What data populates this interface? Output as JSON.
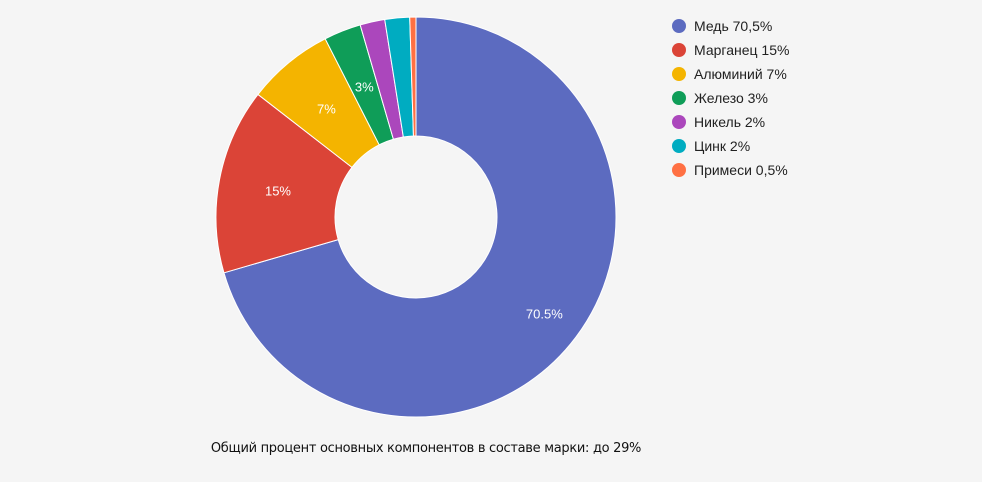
{
  "chart_data": {
    "type": "pie",
    "donut": true,
    "start": "top",
    "direction": "clockwise",
    "slices": [
      {
        "name": "Медь",
        "value": 70.5,
        "legend": "Медь 70,5%",
        "label": "70.5%",
        "color": "#5c6bc0"
      },
      {
        "name": "Марганец",
        "value": 15,
        "legend": "Марганец 15%",
        "label": "15%",
        "color": "#db4437"
      },
      {
        "name": "Алюминий",
        "value": 7,
        "legend": "Алюминий 7%",
        "label": "7%",
        "color": "#f4b400"
      },
      {
        "name": "Железо",
        "value": 3,
        "legend": "Железо 3%",
        "label": "3%",
        "color": "#0f9d58"
      },
      {
        "name": "Никель",
        "value": 2,
        "legend": "Никель 2%",
        "label": "",
        "color": "#ab47bc"
      },
      {
        "name": "Цинк",
        "value": 2,
        "legend": "Цинк 2%",
        "label": "",
        "color": "#00acc1"
      },
      {
        "name": "Примеси",
        "value": 0.5,
        "legend": "Примеси 0,5%",
        "label": "",
        "color": "#ff7043"
      }
    ],
    "legend_position": "right",
    "caption": "Общий процент основных компонентов в составе марки: до 29%"
  }
}
